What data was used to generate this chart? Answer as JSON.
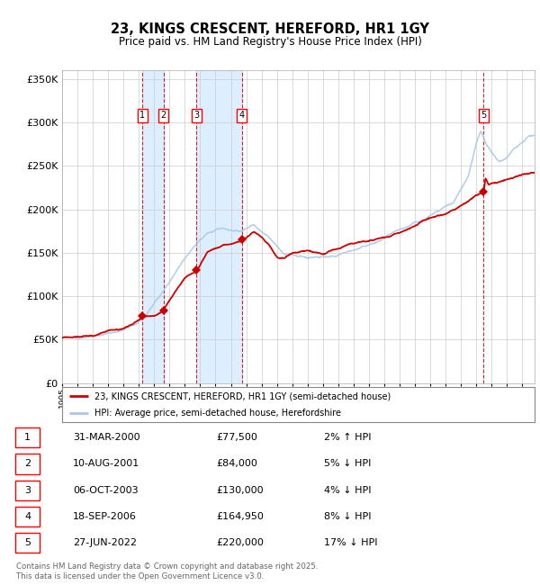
{
  "title": "23, KINGS CRESCENT, HEREFORD, HR1 1GY",
  "subtitle": "Price paid vs. HM Land Registry's House Price Index (HPI)",
  "ylim": [
    0,
    360000
  ],
  "yticks": [
    0,
    50000,
    100000,
    150000,
    200000,
    250000,
    300000,
    350000
  ],
  "xlim_start": 1995.0,
  "xlim_end": 2025.8,
  "hpi_color": "#a8c8e8",
  "price_color": "#cc0000",
  "sale_marker_color": "#cc0000",
  "vline_color": "#cc0000",
  "shade_color": "#ddeeff",
  "grid_color": "#cccccc",
  "bg_color": "#ffffff",
  "sale_events": [
    {
      "label": "1",
      "year": 2000.25,
      "price": 77500,
      "date": "31-MAR-2000",
      "pct": "2%",
      "direction": "↑"
    },
    {
      "label": "2",
      "year": 2001.61,
      "price": 84000,
      "date": "10-AUG-2001",
      "pct": "5%",
      "direction": "↓"
    },
    {
      "label": "3",
      "year": 2003.77,
      "price": 130000,
      "date": "06-OCT-2003",
      "pct": "4%",
      "direction": "↓"
    },
    {
      "label": "4",
      "year": 2006.71,
      "price": 164950,
      "date": "18-SEP-2006",
      "pct": "8%",
      "direction": "↓"
    },
    {
      "label": "5",
      "year": 2022.48,
      "price": 220000,
      "date": "27-JUN-2022",
      "pct": "17%",
      "direction": "↓"
    }
  ],
  "legend_line1": "23, KINGS CRESCENT, HEREFORD, HR1 1GY (semi-detached house)",
  "legend_line2": "HPI: Average price, semi-detached house, Herefordshire",
  "footer": "Contains HM Land Registry data © Crown copyright and database right 2025.\nThis data is licensed under the Open Government Licence v3.0.",
  "table_rows": [
    [
      "1",
      "31-MAR-2000",
      "£77,500",
      "2% ↑ HPI"
    ],
    [
      "2",
      "10-AUG-2001",
      "£84,000",
      "5% ↓ HPI"
    ],
    [
      "3",
      "06-OCT-2003",
      "£130,000",
      "4% ↓ HPI"
    ],
    [
      "4",
      "18-SEP-2006",
      "£164,950",
      "8% ↓ HPI"
    ],
    [
      "5",
      "27-JUN-2022",
      "£220,000",
      "17% ↓ HPI"
    ]
  ]
}
